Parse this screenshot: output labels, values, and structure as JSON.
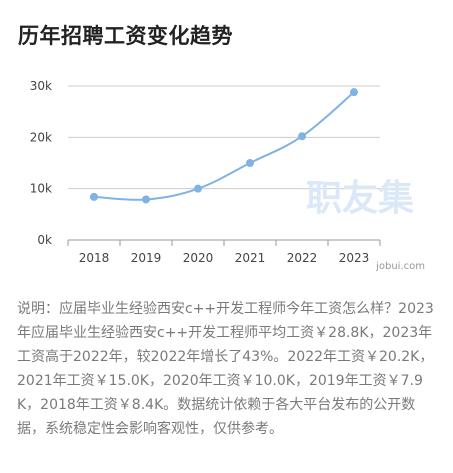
{
  "title": "历年招聘工资变化趋势",
  "description": "说明：应届毕业生经验西安c++开发工程师今年工资怎么样？2023年应届毕业生经验西安c++开发工程师平均工资￥28.8K，2023年工资高于2022年，较2022年增长了43%。2022年工资￥20.2K，2021年工资￥15.0K，2020年工资￥10.0K，2019年工资￥7.9K，2018年工资￥8.4K。数据统计依赖于各大平台发布的公开数据，系统稳定性会影响客观性，仅供参考。",
  "watermark": "职友集",
  "brand": "jobui.com",
  "colors": {
    "line": "#7fb2e5",
    "grid": "#cccccc",
    "axis": "#999999",
    "watermark": "#dbe8f7"
  },
  "chart_data": {
    "type": "line",
    "categories": [
      "2018",
      "2019",
      "2020",
      "2021",
      "2022",
      "2023"
    ],
    "values": [
      8.4,
      7.9,
      10.0,
      15.0,
      20.2,
      28.8
    ],
    "y_ticks": [
      "0k",
      "10k",
      "20k",
      "30k"
    ],
    "ylim": [
      0,
      30
    ],
    "title": "",
    "xlabel": "",
    "ylabel": "",
    "grid": true
  }
}
